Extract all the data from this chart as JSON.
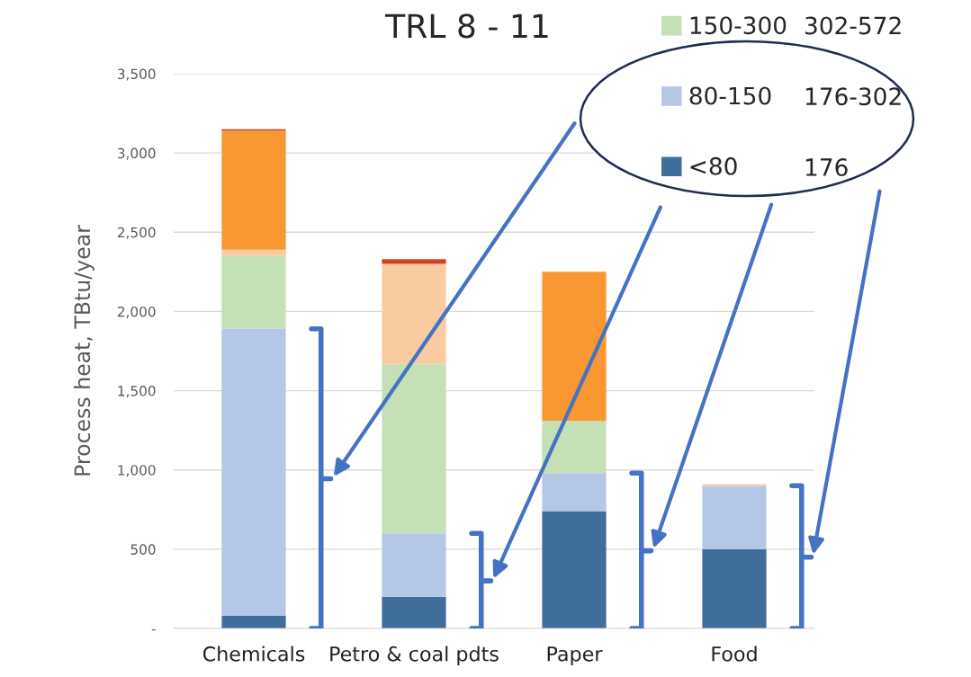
{
  "chart_data": {
    "type": "bar",
    "title": "TRL 8 - 11",
    "ylabel": "Process heat, TBtu/year",
    "categories": [
      "Chemicals",
      "Petro & coal pdts",
      "Paper",
      "Food"
    ],
    "stacked": true,
    "series": [
      {
        "name": "<80",
        "color": "#3f6e9a",
        "values": [
          80,
          200,
          740,
          500
        ]
      },
      {
        "name": "80-150",
        "color": "#b4c7e7",
        "values": [
          1810,
          400,
          240,
          400
        ]
      },
      {
        "name": "150-300",
        "color": "#c5e0b4",
        "values": [
          460,
          1070,
          330,
          0
        ]
      },
      {
        "color": "#f8cba0",
        "values": [
          40,
          630,
          0,
          10
        ]
      },
      {
        "color": "#f99733",
        "values": [
          750,
          0,
          940,
          0
        ]
      },
      {
        "color": "#d9401c",
        "values": [
          10,
          30,
          0,
          0
        ]
      }
    ],
    "ylim": [
      0,
      3500
    ],
    "yticks": [
      {
        "value": 0,
        "label": "-"
      },
      {
        "value": 500,
        "label": "500"
      },
      {
        "value": 1000,
        "label": "1,000"
      },
      {
        "value": 1500,
        "label": "1,500"
      },
      {
        "value": 2000,
        "label": "2,000"
      },
      {
        "value": 2500,
        "label": "2,500"
      },
      {
        "value": 3000,
        "label": "3,000"
      },
      {
        "value": 3500,
        "label": "3,500"
      }
    ],
    "grid": "y",
    "legend": "top right",
    "annotations": [
      "176",
      "176-302",
      "302-572"
    ]
  }
}
